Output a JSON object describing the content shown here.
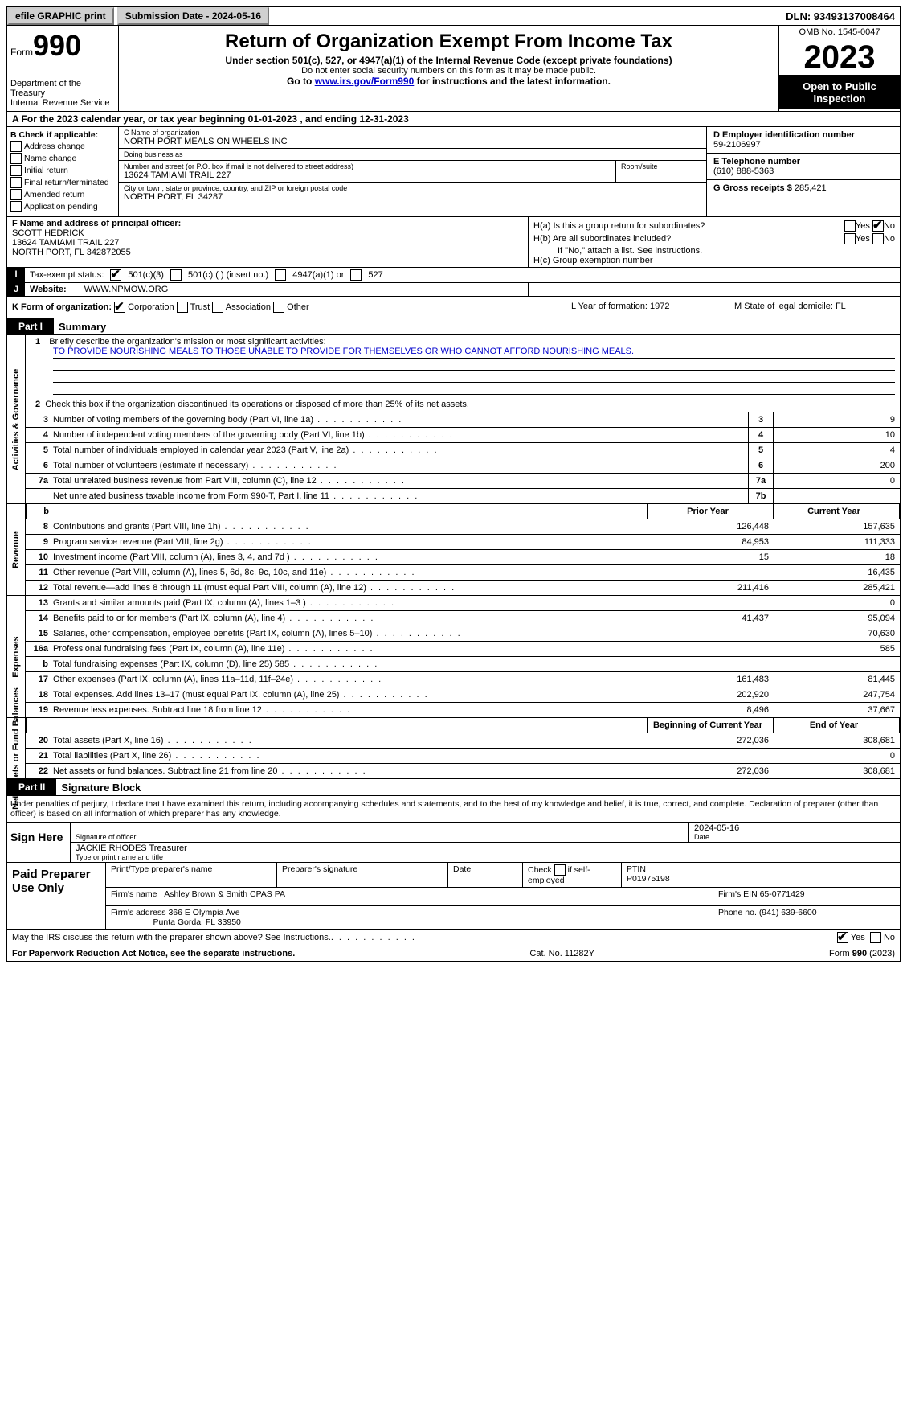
{
  "topbar": {
    "efile": "efile GRAPHIC print",
    "submission": "Submission Date - 2024-05-16",
    "dln": "DLN: 93493137008464"
  },
  "header": {
    "form_prefix": "Form",
    "form_number": "990",
    "title": "Return of Organization Exempt From Income Tax",
    "subtitle": "Under section 501(c), 527, or 4947(a)(1) of the Internal Revenue Code (except private foundations)",
    "ssn_note": "Do not enter social security numbers on this form as it may be made public.",
    "goto": "Go to ",
    "goto_link": "www.irs.gov/Form990",
    "goto_suffix": " for instructions and the latest information.",
    "dept": "Department of the Treasury\nInternal Revenue Service",
    "omb": "OMB No. 1545-0047",
    "year": "2023",
    "opi": "Open to Public Inspection"
  },
  "rowA": "A For the 2023 calendar year, or tax year beginning 01-01-2023    , and ending 12-31-2023",
  "boxB": {
    "label": "B Check if applicable:",
    "opts": [
      "Address change",
      "Name change",
      "Initial return",
      "Final return/terminated",
      "Amended return",
      "Application pending"
    ]
  },
  "boxC": {
    "name_lbl": "C Name of organization",
    "name": "NORTH PORT MEALS ON WHEELS INC",
    "dba_lbl": "Doing business as",
    "dba": "",
    "addr_lbl": "Number and street (or P.O. box if mail is not delivered to street address)",
    "addr": "13624 TAMIAMI TRAIL 227",
    "room_lbl": "Room/suite",
    "room": "",
    "city_lbl": "City or town, state or province, country, and ZIP or foreign postal code",
    "city": "NORTH PORT, FL  34287"
  },
  "boxD": {
    "lbl": "D Employer identification number",
    "val": "59-2106997"
  },
  "boxE": {
    "lbl": "E Telephone number",
    "val": "(610) 888-5363"
  },
  "boxG": {
    "lbl": "G Gross receipts $",
    "val": "285,421"
  },
  "boxF": {
    "lbl": "F  Name and address of principal officer:",
    "name": "SCOTT HEDRICK",
    "addr1": "13624 TAMIAMI TRAIL 227",
    "addr2": "NORTH PORT, FL  342872055"
  },
  "boxH": {
    "ha": "H(a)  Is this a group return for subordinates?",
    "hb": "H(b)  Are all subordinates included?",
    "hb_note": "If \"No,\" attach a list. See instructions.",
    "hc": "H(c)  Group exemption number",
    "yes": "Yes",
    "no": "No"
  },
  "rowI": {
    "lbl": "I",
    "text": "Tax-exempt status:",
    "opt1": "501(c)(3)",
    "opt2": "501(c) (  ) (insert no.)",
    "opt3": "4947(a)(1) or",
    "opt4": "527"
  },
  "rowJ": {
    "lbl": "J",
    "text": "Website:",
    "val": "WWW.NPMOW.ORG"
  },
  "rowK": {
    "text": "K Form of organization:",
    "opts": [
      "Corporation",
      "Trust",
      "Association",
      "Other"
    ],
    "L": "L Year of formation: 1972",
    "M": "M State of legal domicile: FL"
  },
  "part1": {
    "hdr": "Part I",
    "title": "Summary"
  },
  "summary": {
    "sec1_label": "Activities & Governance",
    "sec2_label": "Revenue",
    "sec3_label": "Expenses",
    "sec4_label": "Net Assets or Fund Balances",
    "line1_lbl": "1",
    "line1_txt": "Briefly describe the organization's mission or most significant activities:",
    "line1_val": "TO PROVIDE NOURISHING MEALS TO THOSE UNABLE TO PROVIDE FOR THEMSELVES OR WHO CANNOT AFFORD NOURISHING MEALS.",
    "line2_txt": "Check this box      if the organization discontinued its operations or disposed of more than 25% of its net assets.",
    "lines_gov": [
      {
        "n": "3",
        "t": "Number of voting members of the governing body (Part VI, line 1a)",
        "b": "3",
        "v": "9"
      },
      {
        "n": "4",
        "t": "Number of independent voting members of the governing body (Part VI, line 1b)",
        "b": "4",
        "v": "10"
      },
      {
        "n": "5",
        "t": "Total number of individuals employed in calendar year 2023 (Part V, line 2a)",
        "b": "5",
        "v": "4"
      },
      {
        "n": "6",
        "t": "Total number of volunteers (estimate if necessary)",
        "b": "6",
        "v": "200"
      },
      {
        "n": "7a",
        "t": "Total unrelated business revenue from Part VIII, column (C), line 12",
        "b": "7a",
        "v": "0"
      },
      {
        "n": "",
        "t": "Net unrelated business taxable income from Form 990-T, Part I, line 11",
        "b": "7b",
        "v": ""
      }
    ],
    "hdr_b": "b",
    "hdr_py": "Prior Year",
    "hdr_cy": "Current Year",
    "lines_rev": [
      {
        "n": "8",
        "t": "Contributions and grants (Part VIII, line 1h)",
        "py": "126,448",
        "cy": "157,635"
      },
      {
        "n": "9",
        "t": "Program service revenue (Part VIII, line 2g)",
        "py": "84,953",
        "cy": "111,333"
      },
      {
        "n": "10",
        "t": "Investment income (Part VIII, column (A), lines 3, 4, and 7d )",
        "py": "15",
        "cy": "18"
      },
      {
        "n": "11",
        "t": "Other revenue (Part VIII, column (A), lines 5, 6d, 8c, 9c, 10c, and 11e)",
        "py": "",
        "cy": "16,435"
      },
      {
        "n": "12",
        "t": "Total revenue—add lines 8 through 11 (must equal Part VIII, column (A), line 12)",
        "py": "211,416",
        "cy": "285,421"
      }
    ],
    "lines_exp": [
      {
        "n": "13",
        "t": "Grants and similar amounts paid (Part IX, column (A), lines 1–3 )",
        "py": "",
        "cy": "0"
      },
      {
        "n": "14",
        "t": "Benefits paid to or for members (Part IX, column (A), line 4)",
        "py": "41,437",
        "cy": "95,094"
      },
      {
        "n": "15",
        "t": "Salaries, other compensation, employee benefits (Part IX, column (A), lines 5–10)",
        "py": "",
        "cy": "70,630"
      },
      {
        "n": "16a",
        "t": "Professional fundraising fees (Part IX, column (A), line 11e)",
        "py": "",
        "cy": "585"
      },
      {
        "n": "b",
        "t": "Total fundraising expenses (Part IX, column (D), line 25) 585",
        "py": "shade",
        "cy": "shade"
      },
      {
        "n": "17",
        "t": "Other expenses (Part IX, column (A), lines 11a–11d, 11f–24e)",
        "py": "161,483",
        "cy": "81,445"
      },
      {
        "n": "18",
        "t": "Total expenses. Add lines 13–17 (must equal Part IX, column (A), line 25)",
        "py": "202,920",
        "cy": "247,754"
      },
      {
        "n": "19",
        "t": "Revenue less expenses. Subtract line 18 from line 12",
        "py": "8,496",
        "cy": "37,667"
      }
    ],
    "hdr_bcy": "Beginning of Current Year",
    "hdr_eoy": "End of Year",
    "lines_net": [
      {
        "n": "20",
        "t": "Total assets (Part X, line 16)",
        "py": "272,036",
        "cy": "308,681"
      },
      {
        "n": "21",
        "t": "Total liabilities (Part X, line 26)",
        "py": "",
        "cy": "0"
      },
      {
        "n": "22",
        "t": "Net assets or fund balances. Subtract line 21 from line 20",
        "py": "272,036",
        "cy": "308,681"
      }
    ]
  },
  "part2": {
    "hdr": "Part II",
    "title": "Signature Block"
  },
  "sig": {
    "declaration": "Under penalties of perjury, I declare that I have examined this return, including accompanying schedules and statements, and to the best of my knowledge and belief, it is true, correct, and complete. Declaration of preparer (other than officer) is based on all information of which preparer has any knowledge.",
    "sign_here": "Sign Here",
    "sig_officer_lbl": "Signature of officer",
    "date_lbl": "Date",
    "date_val": "2024-05-16",
    "officer_name": "JACKIE RHODES  Treasurer",
    "type_lbl": "Type or print name and title"
  },
  "prep": {
    "lbl": "Paid Preparer Use Only",
    "col1": "Print/Type preparer's name",
    "col2": "Preparer's signature",
    "col3": "Date",
    "col4a": "Check",
    "col4b": "if self-employed",
    "col5": "PTIN",
    "ptin": "P01975198",
    "firm_name_lbl": "Firm's name",
    "firm_name": "Ashley Brown & Smith CPAS PA",
    "firm_ein_lbl": "Firm's EIN",
    "firm_ein": "65-0771429",
    "firm_addr_lbl": "Firm's address",
    "firm_addr1": "366 E Olympia Ave",
    "firm_addr2": "Punta Gorda, FL  33950",
    "phone_lbl": "Phone no.",
    "phone": "(941) 639-6600"
  },
  "discuss": {
    "q": "May the IRS discuss this return with the preparer shown above? See Instructions.",
    "yes": "Yes",
    "no": "No"
  },
  "footer": {
    "left": "For Paperwork Reduction Act Notice, see the separate instructions.",
    "mid": "Cat. No. 11282Y",
    "right_a": "Form ",
    "right_b": "990",
    "right_c": " (2023)"
  }
}
